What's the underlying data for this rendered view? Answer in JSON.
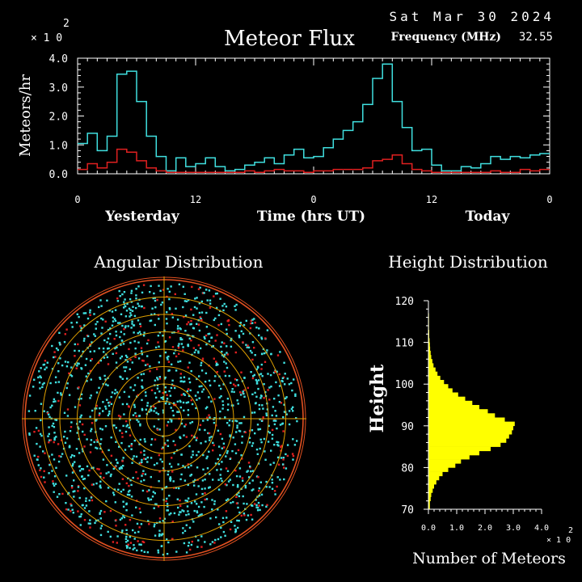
{
  "header": {
    "date": "Sat Mar 30 2024",
    "frequency_label": "Frequency (MHz)",
    "frequency_value": "32.55",
    "multiplier": "× 1 0",
    "multiplier_exp": "2"
  },
  "colors": {
    "background": "#000000",
    "axis": "#ffffff",
    "flux_total": "#40e0e0",
    "flux_subset": "#e02020",
    "polar_rings": "#e0a000",
    "polar_outer": "#e05020",
    "height_bars": "#ffff00"
  },
  "chart_data": [
    {
      "type": "line",
      "title": "Meteor Flux",
      "ylabel": "Meteors/hr",
      "xlabel": "Time (hrs UT)",
      "x_day_labels": [
        "Yesterday",
        "Today"
      ],
      "x_tick_labels": [
        "0",
        "12",
        "0",
        "12",
        "0"
      ],
      "x_ticks": [
        0,
        12,
        24,
        36,
        48
      ],
      "xlim": [
        0,
        48
      ],
      "ylim": [
        0,
        4.0
      ],
      "y_tick_labels": [
        "0.0",
        "1.0",
        "2.0",
        "3.0",
        "4.0"
      ],
      "y_ticks": [
        0,
        1.0,
        2.0,
        3.0,
        4.0
      ],
      "y_multiplier": "× 1 0",
      "y_multiplier_exp": "2",
      "step": true,
      "series": [
        {
          "color": "#40e0e0",
          "values": [
            1.05,
            1.4,
            0.8,
            1.3,
            3.45,
            3.55,
            2.5,
            1.3,
            0.6,
            0.1,
            0.55,
            0.25,
            0.35,
            0.55,
            0.25,
            0.1,
            0.15,
            0.3,
            0.4,
            0.55,
            0.35,
            0.65,
            0.85,
            0.55,
            0.6,
            0.9,
            1.2,
            1.5,
            1.8,
            2.4,
            3.3,
            3.8,
            2.5,
            1.6,
            0.8,
            0.85,
            0.3,
            0.1,
            0.1,
            0.25,
            0.2,
            0.35,
            0.6,
            0.5,
            0.6,
            0.55,
            0.65,
            0.7
          ]
        },
        {
          "color": "#e02020",
          "values": [
            0.15,
            0.35,
            0.2,
            0.4,
            0.85,
            0.75,
            0.45,
            0.2,
            0.1,
            0.05,
            0.05,
            0.05,
            0.05,
            0.05,
            0.05,
            0.05,
            0.05,
            0.1,
            0.05,
            0.1,
            0.15,
            0.1,
            0.1,
            0.05,
            0.1,
            0.1,
            0.15,
            0.15,
            0.15,
            0.2,
            0.45,
            0.5,
            0.65,
            0.35,
            0.15,
            0.1,
            0.05,
            0.05,
            0.05,
            0.05,
            0.05,
            0.05,
            0.1,
            0.05,
            0.05,
            0.15,
            0.1,
            0.15
          ]
        }
      ]
    },
    {
      "type": "scatter",
      "title": "Angular Distribution",
      "polar": true,
      "rings": 8,
      "series": [
        {
          "color": "#40e0e0",
          "marker": "dot"
        },
        {
          "color": "#e02020",
          "marker": "dot"
        }
      ]
    },
    {
      "type": "bar",
      "orientation": "horizontal",
      "title": "Height Distribution",
      "ylabel": "Height",
      "xlabel": "Number of Meteors",
      "ylim": [
        70,
        120
      ],
      "y_ticks": [
        70,
        80,
        90,
        100,
        110,
        120
      ],
      "y_tick_labels": [
        "70",
        "80",
        "90",
        "100",
        "110",
        "120"
      ],
      "xlim": [
        0,
        4.0
      ],
      "x_ticks": [
        0,
        1.0,
        2.0,
        3.0,
        4.0
      ],
      "x_tick_labels": [
        "0.0",
        "1.0",
        "2.0",
        "3.0",
        "4.0"
      ],
      "x_multiplier": "× 1 0",
      "x_multiplier_exp": "2",
      "bin_height_km": 1,
      "heights": [
        70,
        71,
        72,
        73,
        74,
        75,
        76,
        77,
        78,
        79,
        80,
        81,
        82,
        83,
        84,
        85,
        86,
        87,
        88,
        89,
        90,
        91,
        92,
        93,
        94,
        95,
        96,
        97,
        98,
        99,
        100,
        101,
        102,
        103,
        104,
        105,
        106,
        107,
        108,
        109,
        110,
        111,
        112,
        113,
        114,
        115,
        116,
        117,
        118,
        119
      ],
      "values": [
        0.05,
        0.05,
        0.08,
        0.1,
        0.15,
        0.2,
        0.28,
        0.38,
        0.5,
        0.7,
        0.95,
        1.15,
        1.45,
        1.8,
        2.2,
        2.55,
        2.75,
        2.85,
        2.95,
        3.0,
        3.05,
        2.7,
        2.35,
        2.1,
        1.8,
        1.55,
        1.3,
        1.05,
        0.85,
        0.7,
        0.55,
        0.42,
        0.32,
        0.25,
        0.18,
        0.14,
        0.1,
        0.08,
        0.06,
        0.05,
        0.04,
        0.03,
        0.03,
        0.02,
        0.02,
        0.02,
        0.02,
        0.01,
        0.01,
        0.01
      ]
    }
  ]
}
